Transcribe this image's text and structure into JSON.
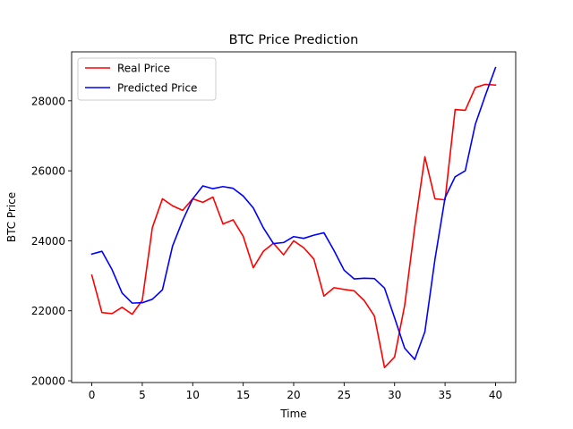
{
  "chart_data": {
    "type": "line",
    "title": "BTC Price Prediction",
    "xlabel": "Time",
    "ylabel": "BTC Price",
    "xlim": [
      -2,
      42
    ],
    "ylim": [
      19950,
      29400
    ],
    "xticks": [
      0,
      5,
      10,
      15,
      20,
      25,
      30,
      35,
      40
    ],
    "yticks": [
      20000,
      22000,
      24000,
      26000,
      28000
    ],
    "legend_position": "upper-left",
    "grid": false,
    "x": [
      0,
      1,
      2,
      3,
      4,
      5,
      6,
      7,
      8,
      9,
      10,
      11,
      12,
      13,
      14,
      15,
      16,
      17,
      18,
      19,
      20,
      21,
      22,
      23,
      24,
      25,
      26,
      27,
      28,
      29,
      30,
      31,
      32,
      33,
      34,
      35,
      36,
      37,
      38,
      39,
      40
    ],
    "series": [
      {
        "name": "Real Price",
        "color": "#ff0000",
        "values": [
          23020,
          21950,
          21920,
          22100,
          21900,
          22300,
          24380,
          25200,
          25000,
          24870,
          25200,
          25100,
          25250,
          24480,
          24600,
          24130,
          23230,
          23700,
          23930,
          23600,
          24000,
          23800,
          23480,
          22420,
          22660,
          22610,
          22570,
          22290,
          21850,
          20380,
          20680,
          22160,
          24400,
          26400,
          25200,
          25170,
          27750,
          27730,
          28380,
          28470,
          28450
        ]
      },
      {
        "name": "Predicted Price",
        "color": "#0000ff",
        "values": [
          23620,
          23700,
          23180,
          22510,
          22220,
          22230,
          22330,
          22600,
          23850,
          24580,
          25200,
          25570,
          25490,
          25550,
          25500,
          25280,
          24940,
          24370,
          23920,
          23950,
          24120,
          24070,
          24160,
          24230,
          23720,
          23160,
          22910,
          22930,
          22920,
          22650,
          21800,
          20930,
          20610,
          21400,
          23470,
          25230,
          25830,
          26000,
          27330,
          28160,
          28950
        ]
      }
    ]
  }
}
